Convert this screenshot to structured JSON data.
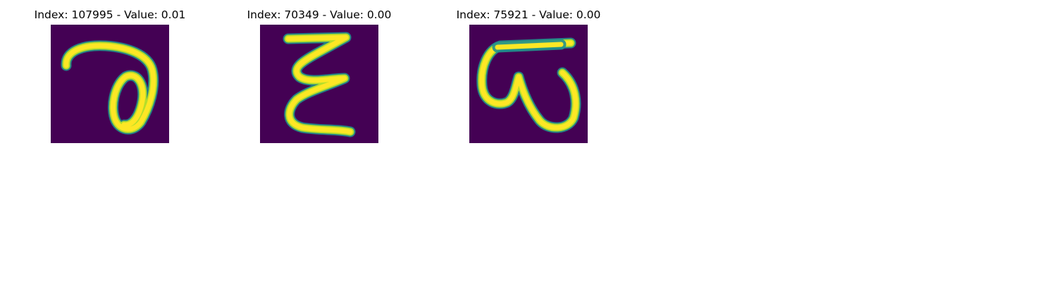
{
  "colors": {
    "background": "#440154",
    "stroke_core": "#fde725",
    "stroke_mid": "#b5de2b",
    "stroke_edge": "#21918c"
  },
  "panels": [
    {
      "title": "Index: 107995 - Value: 0.01"
    },
    {
      "title": "Index: 70349 - Value: 0.00"
    },
    {
      "title": "Index: 75921 - Value: 0.00"
    }
  ]
}
